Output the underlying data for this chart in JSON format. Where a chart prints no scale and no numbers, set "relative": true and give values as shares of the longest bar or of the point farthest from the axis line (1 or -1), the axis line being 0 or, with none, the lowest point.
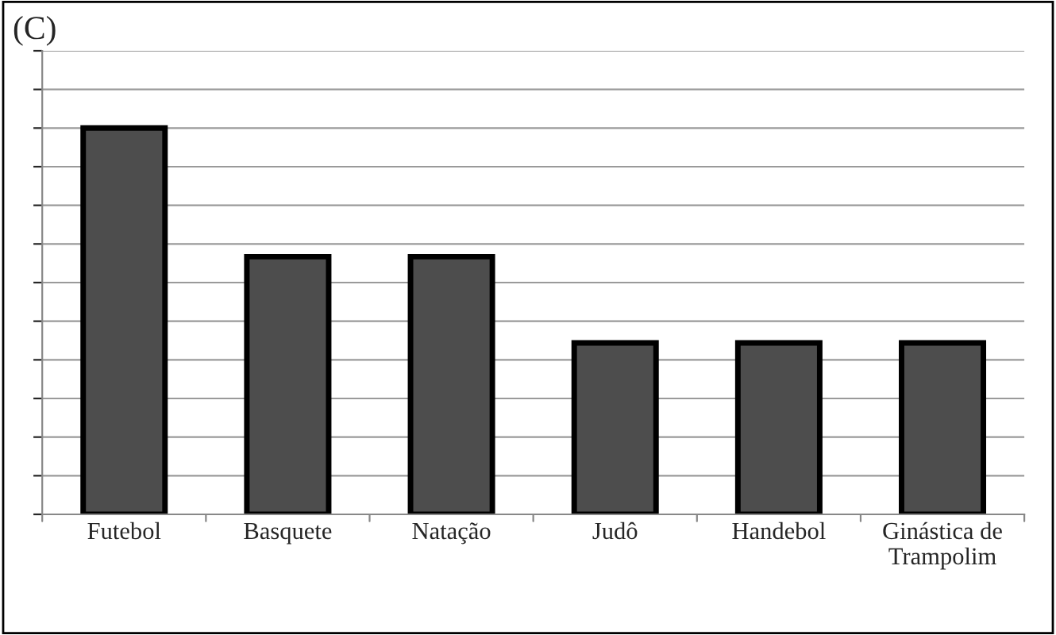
{
  "chart_data": {
    "type": "bar",
    "title": "(C)",
    "relative": true,
    "categories": [
      "Futebol",
      "Basquete",
      "Natação",
      "Judô",
      "Handebol",
      "Ginástica de\nTrampolim"
    ],
    "values": [
      1,
      0.667,
      0.667,
      0.444,
      0.444,
      0.444
    ],
    "color": "#4d4d4d",
    "grid": "y"
  }
}
